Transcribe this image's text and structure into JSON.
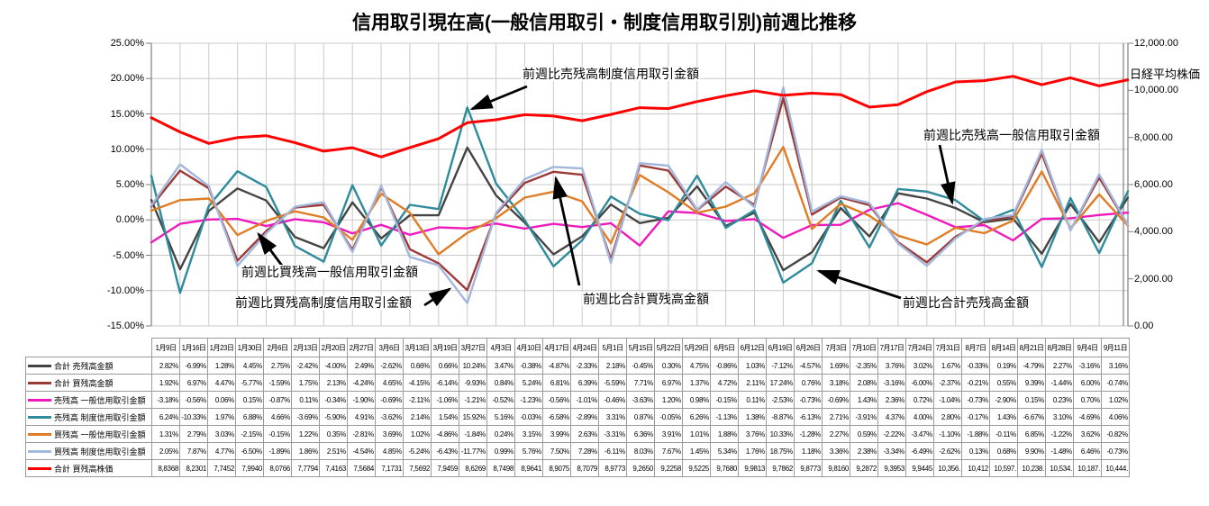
{
  "title": "信用取引現在高(一般信用取引・制度信用取引別)前週比推移",
  "annotations": [
    {
      "id": "sell-seido",
      "text": "前週比売残高制度信用取引金額"
    },
    {
      "id": "buy-ippan",
      "text": "前週比買残高一般信用取引金額"
    },
    {
      "id": "buy-seido",
      "text": "前週比買残高制度信用取引金額"
    },
    {
      "id": "total-buy",
      "text": "前週比合計買残高金額"
    },
    {
      "id": "total-sell",
      "text": "前週比合計売残高金額"
    },
    {
      "id": "sell-ippan",
      "text": "前週比売残高一般信用取引金額"
    }
  ],
  "chart_data": {
    "type": "line",
    "categories": [
      "1月9日",
      "1月16日",
      "1月23日",
      "1月30日",
      "2月6日",
      "2月13日",
      "2月20日",
      "2月27日",
      "3月6日",
      "3月13日",
      "3月19日",
      "3月27日",
      "4月3日",
      "4月10日",
      "4月17日",
      "4月24日",
      "5月1日",
      "5月15日",
      "5月22日",
      "5月29日",
      "6月5日",
      "6月12日",
      "6月19日",
      "6月26日",
      "7月3日",
      "7月10日",
      "7月17日",
      "7月24日",
      "7月31日",
      "8月7日",
      "8月14日",
      "8月21日",
      "8月28日",
      "9月4日",
      "9月11日"
    ],
    "left_axis": {
      "min": -15,
      "max": 25,
      "step": 5,
      "format": "percent"
    },
    "right_axis": {
      "min": 0,
      "max": 12000,
      "step": 2000,
      "title": "日経平均株価"
    },
    "grid": true,
    "legend_position": "table-left",
    "series": [
      {
        "name": "合計 売残高金額",
        "color": "#444444",
        "axis": "left",
        "values": [
          2.82,
          -6.99,
          1.28,
          4.45,
          2.75,
          -2.42,
          -4.0,
          2.49,
          -2.62,
          0.66,
          0.66,
          10.24,
          3.47,
          -0.38,
          -4.87,
          -2.33,
          2.18,
          -0.45,
          0.3,
          4.75,
          -0.86,
          1.03,
          -7.12,
          -4.57,
          1.69,
          -2.35,
          3.76,
          3.02,
          1.67,
          -0.33,
          0.19,
          -4.79,
          2.27,
          -3.16,
          3.16
        ]
      },
      {
        "name": "合計 買残高金額",
        "color": "#9c3a38",
        "axis": "left",
        "values": [
          1.92,
          6.97,
          4.47,
          -5.77,
          -1.59,
          1.75,
          2.13,
          -4.24,
          4.65,
          -4.15,
          -6.14,
          -9.93,
          0.84,
          5.24,
          6.81,
          6.39,
          -5.59,
          7.71,
          6.97,
          1.37,
          4.72,
          2.11,
          17.24,
          0.76,
          3.18,
          2.08,
          -3.16,
          -6.0,
          -2.37,
          -0.21,
          0.55,
          9.39,
          -1.44,
          6.0,
          -0.74
        ]
      },
      {
        "name": "売残高 一般信用取引金額",
        "color": "#ef1abc",
        "axis": "left",
        "values": [
          -3.18,
          -0.56,
          0.06,
          0.15,
          -0.87,
          0.11,
          -0.34,
          -1.9,
          -0.69,
          -2.11,
          -1.06,
          -1.21,
          -0.52,
          -1.23,
          -0.56,
          -1.01,
          -0.46,
          -3.63,
          1.2,
          0.98,
          -0.15,
          0.11,
          -2.53,
          -0.73,
          -0.69,
          1.43,
          2.36,
          0.72,
          -1.04,
          -0.73,
          -2.9,
          0.15,
          0.23,
          0.7,
          1.02
        ]
      },
      {
        "name": "売残高 制度信用取引金額",
        "color": "#2e8b9c",
        "axis": "left",
        "values": [
          6.24,
          -10.33,
          1.97,
          6.88,
          4.66,
          -3.69,
          -5.9,
          4.91,
          -3.62,
          2.14,
          1.54,
          15.92,
          5.16,
          -0.03,
          -6.58,
          -2.89,
          3.31,
          0.87,
          -0.05,
          6.26,
          -1.13,
          1.38,
          -8.87,
          -6.13,
          2.71,
          -3.91,
          4.37,
          4.0,
          2.8,
          -0.17,
          1.43,
          -6.67,
          3.1,
          -4.69,
          4.06
        ]
      },
      {
        "name": "買残高 一般信用取引金額",
        "color": "#df7d26",
        "axis": "left",
        "values": [
          1.31,
          2.79,
          3.03,
          -2.15,
          -0.15,
          1.22,
          0.35,
          -2.81,
          3.69,
          1.02,
          -4.86,
          -1.84,
          0.24,
          3.15,
          3.99,
          2.63,
          -3.31,
          6.36,
          3.91,
          1.01,
          1.88,
          3.76,
          10.33,
          -1.28,
          2.27,
          0.59,
          -2.22,
          -3.47,
          -1.1,
          -1.88,
          -0.11,
          6.85,
          -1.22,
          3.62,
          -0.82
        ]
      },
      {
        "name": "買残高 制度信用取引金額",
        "color": "#a3b7dc",
        "axis": "left",
        "values": [
          2.05,
          7.87,
          4.77,
          -6.5,
          -1.89,
          1.86,
          2.51,
          -4.54,
          4.85,
          -5.24,
          -6.43,
          -11.77,
          0.99,
          5.76,
          7.5,
          7.28,
          -6.11,
          8.03,
          7.67,
          1.45,
          5.34,
          1.76,
          18.75,
          1.18,
          3.36,
          2.38,
          -3.34,
          -6.49,
          -2.62,
          0.13,
          0.68,
          9.9,
          -1.48,
          6.46,
          -0.73
        ]
      },
      {
        "name": "合計 買残高株価",
        "color": "#ff0000",
        "axis": "right",
        "values": [
          8836.8,
          8230.1,
          7745.2,
          7994.0,
          8076.6,
          7779.4,
          7416.3,
          7568.4,
          7173.1,
          7569.2,
          7945.9,
          8626.9,
          8749.8,
          8964.1,
          8907.5,
          8707.9,
          8977.3,
          9265.0,
          9225.8,
          9522.5,
          9768.0,
          9981.3,
          9786.2,
          9877.3,
          9816.0,
          9287.2,
          9395.3,
          9944.5,
          10356,
          10412,
          10597,
          10238,
          10534,
          10187,
          10444
        ]
      }
    ]
  },
  "table": {
    "nikkei_display": [
      "8,8368",
      "8,2301",
      "7,7452",
      "7,9940",
      "8,0766",
      "7,7794",
      "7,4163",
      "7,5684",
      "7,1731",
      "7,5692",
      "7,9459",
      "8,6269",
      "8,7498",
      "8,9641",
      "8,9075",
      "8,7079",
      "8,9773",
      "9,2650",
      "9,2258",
      "9,5225",
      "9,7680",
      "9,9813",
      "9,7862",
      "9,8773",
      "9,8160",
      "9,2872",
      "9,3953",
      "9,9445",
      "10,356.",
      "10,412",
      "10,597.",
      "10,238.",
      "10,534.",
      "10,187.",
      "10,444."
    ]
  }
}
